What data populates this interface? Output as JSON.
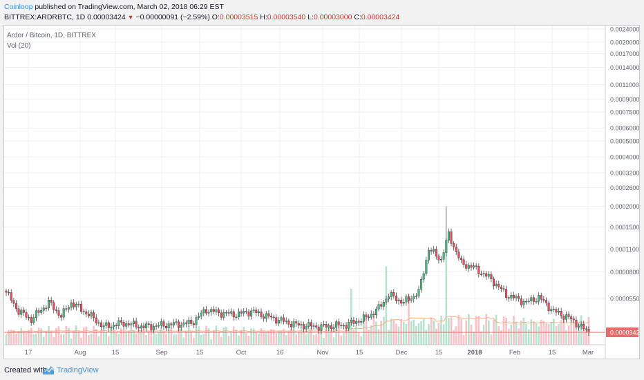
{
  "header": {
    "author": "Coinloop",
    "published_text": "published on TradingView.com, March 02, 2018 06:29 EST",
    "symbol": "BITTREX:ARDRBTC, 1D",
    "last": "0.00003424",
    "change": "−0.00000091 (−2.59%)",
    "o_label": "O:",
    "o_value": "0.00003515",
    "h_label": "H:",
    "h_value": "0.00003540",
    "l_label": "L:",
    "l_value": "0.00003000",
    "c_label": "C:",
    "c_value": "0.00003424"
  },
  "legend": {
    "title": "Ardor / Bitcoin, 1D, BITTREX",
    "vol": "Vol (20)"
  },
  "footer": {
    "created_with": "Created with",
    "brand": "TradingView"
  },
  "colors": {
    "up": "#53b987",
    "down": "#eb4d5c",
    "up_vol": "#a3dcc0",
    "down_vol": "#f6b3ba",
    "price_line": "#e86a6a",
    "ma": "#f4b183"
  },
  "chart_data": {
    "type": "candlestick",
    "title": "Ardor / Bitcoin, 1D, BITTREX",
    "y_scale": "log",
    "y_ticks": [
      "0.00240000",
      "0.00200000",
      "0.00170000",
      "0.00140000",
      "0.00110000",
      "0.00090000",
      "0.00075000",
      "0.00060000",
      "0.00050000",
      "0.00040000",
      "0.00032000",
      "0.00026000",
      "0.00020000",
      "0.00015000",
      "0.00011000",
      "0.00008000",
      "0.00005500"
    ],
    "last_price_label": "0.00003424",
    "last_price": 3.424e-05,
    "x_ticks": [
      "17",
      "Aug",
      "15",
      "Sep",
      "15",
      "Oct",
      "16",
      "Nov",
      "15",
      "Dec",
      "15",
      "2018",
      "Feb",
      "15",
      "Mar"
    ],
    "x_ticks_bold": [
      "2018"
    ],
    "range": [
      "2017-07-12",
      "2018-03-02"
    ],
    "price_anchors": [
      {
        "date": "2017-07-12",
        "close": 6e-05
      },
      {
        "date": "2017-07-17",
        "close": 4.6e-05
      },
      {
        "date": "2017-07-22",
        "close": 4.1e-05
      },
      {
        "date": "2017-07-29",
        "close": 5.2e-05
      },
      {
        "date": "2017-08-03",
        "close": 4.3e-05
      },
      {
        "date": "2017-08-07",
        "close": 5.2e-05
      },
      {
        "date": "2017-08-14",
        "close": 4.4e-05
      },
      {
        "date": "2017-08-20",
        "close": 3.7e-05
      },
      {
        "date": "2017-08-28",
        "close": 3.9e-05
      },
      {
        "date": "2017-09-05",
        "close": 3.7e-05
      },
      {
        "date": "2017-09-14",
        "close": 3.8e-05
      },
      {
        "date": "2017-09-24",
        "close": 3.9e-05
      },
      {
        "date": "2017-09-30",
        "close": 4.7e-05
      },
      {
        "date": "2017-10-05",
        "close": 4.5e-05
      },
      {
        "date": "2017-10-12",
        "close": 4.4e-05
      },
      {
        "date": "2017-10-18",
        "close": 4.6e-05
      },
      {
        "date": "2017-10-26",
        "close": 4.2e-05
      },
      {
        "date": "2017-11-05",
        "close": 3.8e-05
      },
      {
        "date": "2017-11-15",
        "close": 3.7e-05
      },
      {
        "date": "2017-11-25",
        "close": 3.8e-05
      },
      {
        "date": "2017-12-03",
        "close": 4.2e-05
      },
      {
        "date": "2017-12-08",
        "close": 4.8e-05
      },
      {
        "date": "2017-12-12",
        "close": 5.8e-05
      },
      {
        "date": "2017-12-18",
        "close": 5.2e-05
      },
      {
        "date": "2017-12-24",
        "close": 6e-05
      },
      {
        "date": "2017-12-28",
        "close": 0.00011
      },
      {
        "date": "2018-01-02",
        "close": 9.5e-05
      },
      {
        "date": "2018-01-05",
        "close": 0.000135
      },
      {
        "date": "2018-01-10",
        "close": 9e-05
      },
      {
        "date": "2018-01-15",
        "close": 8.5e-05
      },
      {
        "date": "2018-01-22",
        "close": 7.2e-05
      },
      {
        "date": "2018-01-28",
        "close": 5.8e-05
      },
      {
        "date": "2018-02-05",
        "close": 5.2e-05
      },
      {
        "date": "2018-02-10",
        "close": 5.6e-05
      },
      {
        "date": "2018-02-16",
        "close": 4.6e-05
      },
      {
        "date": "2018-02-22",
        "close": 4.2e-05
      },
      {
        "date": "2018-03-02",
        "close": 3.424e-05
      }
    ],
    "spike_high": {
      "date": "2018-01-04",
      "high": 0.0002
    },
    "volume_spikes": [
      {
        "date": "2017-12-11",
        "level": 0.7
      },
      {
        "date": "2018-01-04",
        "level": 0.95
      },
      {
        "date": "2017-11-27",
        "level": 0.5
      },
      {
        "date": "2017-12-20",
        "level": 0.45
      }
    ]
  }
}
